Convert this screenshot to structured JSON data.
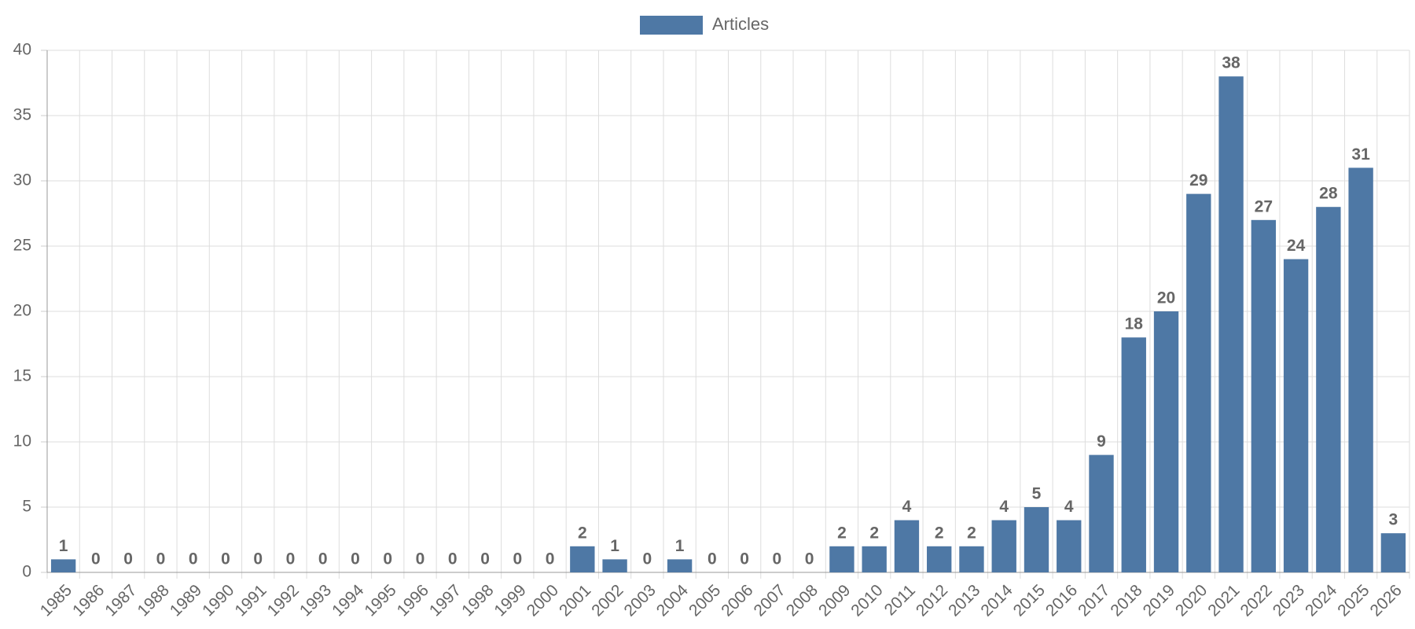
{
  "chart_data": {
    "type": "bar",
    "categories": [
      "1985",
      "1986",
      "1987",
      "1988",
      "1989",
      "1990",
      "1991",
      "1992",
      "1993",
      "1994",
      "1995",
      "1996",
      "1997",
      "1998",
      "1999",
      "2000",
      "2001",
      "2002",
      "2003",
      "2004",
      "2005",
      "2006",
      "2007",
      "2008",
      "2009",
      "2010",
      "2011",
      "2012",
      "2013",
      "2014",
      "2015",
      "2016",
      "2017",
      "2018",
      "2019",
      "2020",
      "2021",
      "2022",
      "2023",
      "2024",
      "2025",
      "2026"
    ],
    "series": [
      {
        "name": "Articles",
        "color": "#4e78a5",
        "values": [
          1,
          0,
          0,
          0,
          0,
          0,
          0,
          0,
          0,
          0,
          0,
          0,
          0,
          0,
          0,
          0,
          2,
          1,
          0,
          1,
          0,
          0,
          0,
          0,
          2,
          2,
          4,
          2,
          2,
          4,
          5,
          4,
          9,
          18,
          20,
          29,
          38,
          27,
          24,
          28,
          31,
          3
        ]
      }
    ],
    "ylim": [
      0,
      40
    ],
    "yticks": [
      0,
      5,
      10,
      15,
      20,
      25,
      30,
      35,
      40
    ],
    "grid": true
  }
}
